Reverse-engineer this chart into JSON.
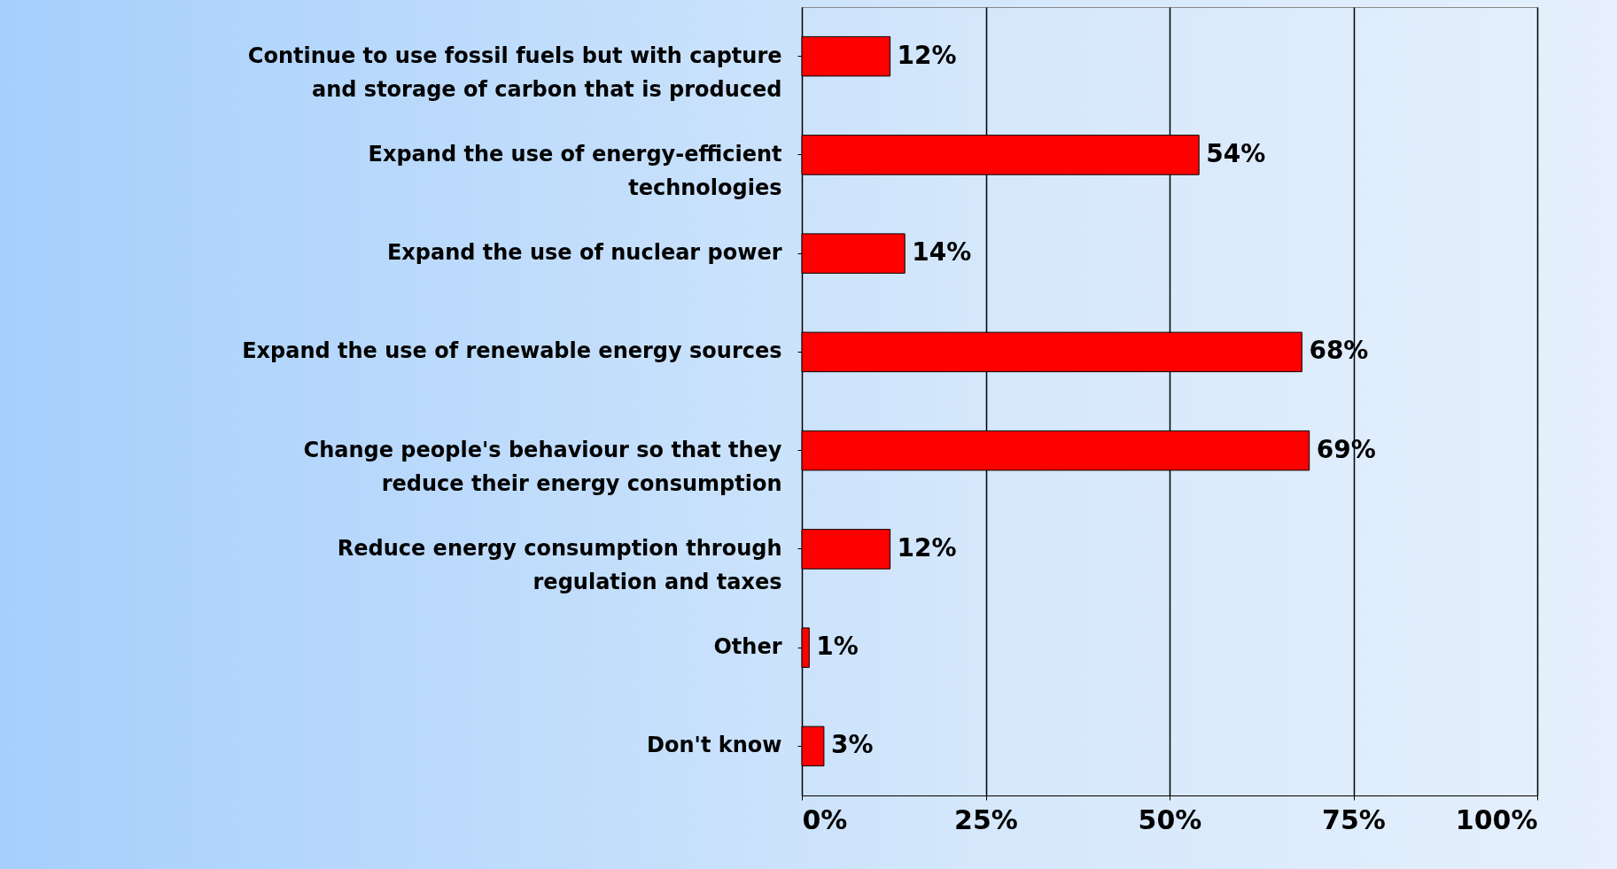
{
  "chart_data": {
    "type": "bar",
    "orientation": "horizontal",
    "categories": [
      "Continue to use fossil fuels but with capture\nand storage of carbon that is produced",
      "Expand the use of energy-efficient\ntechnologies",
      "Expand the use of nuclear power",
      "Expand the use of renewable energy sources",
      "Change people's behaviour so that they\nreduce their energy consumption",
      "Reduce energy consumption through\nregulation and taxes",
      "Other",
      "Don't know"
    ],
    "values": [
      12,
      54,
      14,
      68,
      69,
      12,
      1,
      3
    ],
    "value_labels": [
      "12%",
      "54%",
      "14%",
      "68%",
      "69%",
      "12%",
      "1%",
      "3%"
    ],
    "color": "#ff0000",
    "xlim": [
      0,
      100
    ],
    "xticks": [
      {
        "value": 0,
        "label": "0%"
      },
      {
        "value": 25,
        "label": "25%"
      },
      {
        "value": 50,
        "label": "50%"
      },
      {
        "value": 75,
        "label": "75%"
      },
      {
        "value": 100,
        "label": "100%"
      }
    ],
    "grid": "x"
  }
}
